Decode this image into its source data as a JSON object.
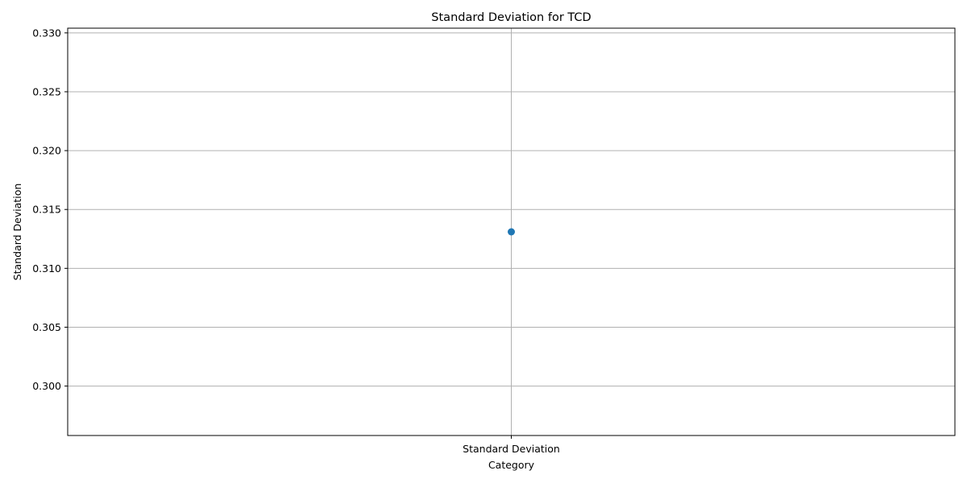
{
  "chart_data": {
    "type": "line",
    "title": "Standard Deviation for TCD",
    "xlabel": "Category",
    "ylabel": "Standard Deviation",
    "categories": [
      "Standard Deviation"
    ],
    "series": [
      {
        "values": [
          0.3131
        ],
        "color": "#1f77b4",
        "marker": "circle"
      }
    ],
    "ylim": [
      0.2958,
      0.3304
    ],
    "yticks": [
      0.3,
      0.305,
      0.31,
      0.315,
      0.32,
      0.325,
      0.33
    ],
    "ytick_labels": [
      "0.300",
      "0.305",
      "0.310",
      "0.315",
      "0.320",
      "0.325",
      "0.330"
    ],
    "grid": true
  }
}
